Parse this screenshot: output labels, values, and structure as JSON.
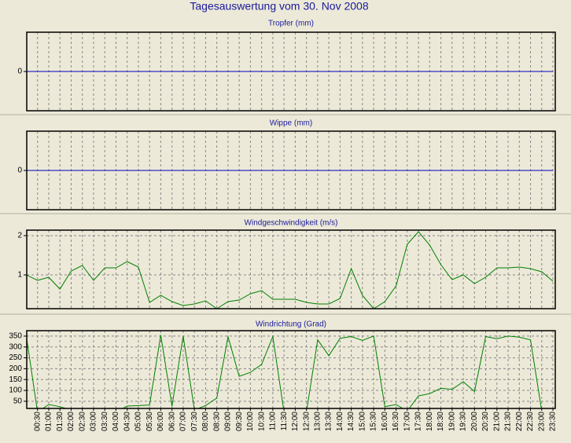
{
  "title": "Tagesauswertung vom 30. Nov 2008",
  "chart_data": [
    {
      "type": "line",
      "title": "Tropfer (mm)",
      "color": "#0000c0",
      "values": [
        0,
        0,
        0,
        0,
        0,
        0,
        0,
        0,
        0,
        0,
        0,
        0,
        0,
        0,
        0,
        0,
        0,
        0,
        0,
        0,
        0,
        0,
        0,
        0,
        0,
        0,
        0,
        0,
        0,
        0,
        0,
        0,
        0,
        0,
        0,
        0,
        0,
        0,
        0,
        0,
        0,
        0,
        0,
        0,
        0,
        0,
        0,
        0
      ],
      "ylim": [
        -1,
        1
      ],
      "yticks": [
        0
      ],
      "grid": true
    },
    {
      "type": "line",
      "title": "Wippe (mm)",
      "color": "#0000c0",
      "values": [
        0,
        0,
        0,
        0,
        0,
        0,
        0,
        0,
        0,
        0,
        0,
        0,
        0,
        0,
        0,
        0,
        0,
        0,
        0,
        0,
        0,
        0,
        0,
        0,
        0,
        0,
        0,
        0,
        0,
        0,
        0,
        0,
        0,
        0,
        0,
        0,
        0,
        0,
        0,
        0,
        0,
        0,
        0,
        0,
        0,
        0,
        0,
        0
      ],
      "ylim": [
        -1,
        1
      ],
      "yticks": [
        0
      ],
      "grid": true
    },
    {
      "type": "line",
      "title": "Windgeschwindigkeit (m/s)",
      "color": "#008000",
      "values": [
        1.0,
        0.86,
        0.94,
        0.64,
        1.1,
        1.24,
        0.86,
        1.18,
        1.18,
        1.34,
        1.2,
        0.3,
        0.48,
        0.32,
        0.22,
        0.26,
        0.34,
        0.14,
        0.32,
        0.36,
        0.52,
        0.6,
        0.38,
        0.38,
        0.38,
        0.3,
        0.26,
        0.26,
        0.4,
        1.16,
        0.48,
        0.14,
        0.32,
        0.72,
        1.78,
        2.1,
        1.76,
        1.26,
        0.88,
        1.0,
        0.78,
        0.94,
        1.18,
        1.18,
        1.2,
        1.16,
        1.08,
        0.84
      ],
      "ylim": [
        0.14,
        2.14
      ],
      "yticks": [
        1,
        2
      ],
      "grid": true
    },
    {
      "type": "line",
      "title": "Windrichtung (Grad)",
      "color": "#008000",
      "categories": [
        null,
        "00:30",
        "01:00",
        "01:30",
        "02:00",
        "02:30",
        "03:00",
        "03:30",
        "04:00",
        "04:30",
        "05:00",
        "05:30",
        "06:00",
        "06:30",
        "07:00",
        "07:30",
        "08:00",
        "08:30",
        "09:00",
        "09:30",
        "10:00",
        "10:30",
        "11:00",
        "11:30",
        "12:00",
        "12:30",
        "13:00",
        "13:30",
        "14:00",
        "14:30",
        "15:00",
        "15:30",
        "16:00",
        "16:30",
        "17:00",
        "17:30",
        "18:00",
        "18:30",
        "19:00",
        "19:30",
        "20:00",
        "20:30",
        "21:00",
        "21:30",
        "22:00",
        "22:30",
        "23:00",
        "23:30"
      ],
      "values": [
        350,
        0,
        35,
        25,
        10,
        0,
        0,
        0,
        0,
        28,
        30,
        33,
        355,
        28,
        350,
        10,
        30,
        65,
        348,
        165,
        183,
        220,
        348,
        0,
        0,
        0,
        333,
        260,
        340,
        348,
        330,
        350,
        25,
        35,
        5,
        75,
        85,
        110,
        105,
        140,
        95,
        348,
        338,
        350,
        345,
        333,
        5,
        0
      ],
      "ylim": [
        17,
        375
      ],
      "yticks": [
        50,
        100,
        150,
        200,
        250,
        300,
        350
      ],
      "grid": true
    }
  ]
}
